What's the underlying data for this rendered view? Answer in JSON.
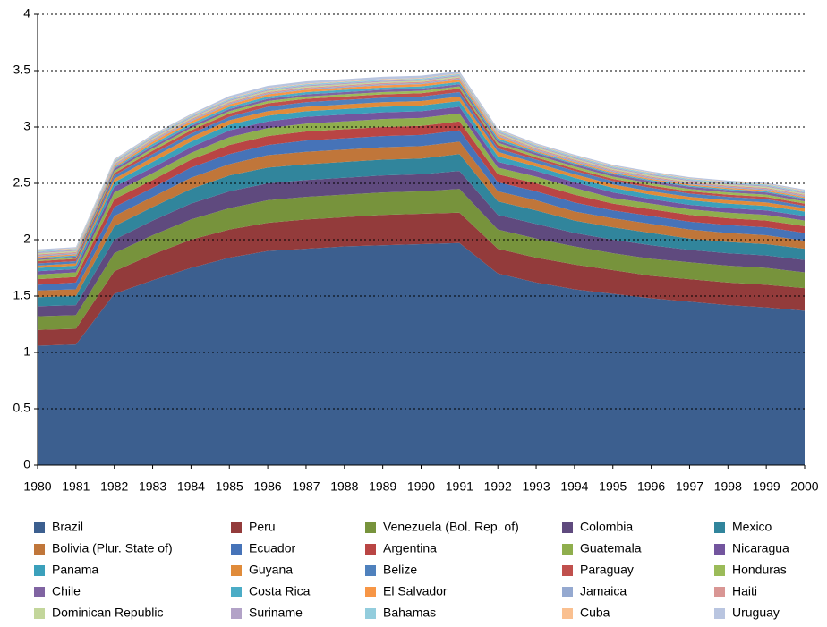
{
  "chart_data": {
    "type": "stacked_area",
    "categories": [
      "1980",
      "1981",
      "1982",
      "1983",
      "1984",
      "1985",
      "1986",
      "1987",
      "1988",
      "1989",
      "1990",
      "1991",
      "1992",
      "1993",
      "1994",
      "1995",
      "1996",
      "1997",
      "1998",
      "1999",
      "2000"
    ],
    "ylim": [
      0,
      4
    ],
    "yticks": [
      0,
      0.5,
      1,
      1.5,
      2,
      2.5,
      3,
      3.5,
      4
    ],
    "grid": true,
    "legend": "bottom",
    "series": [
      {
        "name": "Brazil",
        "color": "#3c5f8f",
        "values": [
          1.06,
          1.07,
          1.52,
          1.64,
          1.75,
          1.84,
          1.9,
          1.92,
          1.94,
          1.95,
          1.96,
          1.97,
          1.7,
          1.62,
          1.56,
          1.52,
          1.48,
          1.45,
          1.42,
          1.4,
          1.37
        ]
      },
      {
        "name": "Peru",
        "color": "#933b3b",
        "values": [
          0.14,
          0.14,
          0.2,
          0.23,
          0.25,
          0.25,
          0.25,
          0.26,
          0.26,
          0.27,
          0.27,
          0.27,
          0.22,
          0.22,
          0.22,
          0.21,
          0.2,
          0.2,
          0.2,
          0.2,
          0.2
        ]
      },
      {
        "name": "Venezuela (Bol. Rep. of)",
        "color": "#77933c",
        "values": [
          0.12,
          0.12,
          0.16,
          0.17,
          0.18,
          0.19,
          0.2,
          0.2,
          0.2,
          0.2,
          0.2,
          0.21,
          0.17,
          0.17,
          0.16,
          0.15,
          0.15,
          0.15,
          0.15,
          0.15,
          0.14
        ]
      },
      {
        "name": "Colombia",
        "color": "#5f4a7e",
        "values": [
          0.09,
          0.09,
          0.12,
          0.13,
          0.14,
          0.15,
          0.15,
          0.15,
          0.15,
          0.15,
          0.15,
          0.16,
          0.13,
          0.13,
          0.12,
          0.12,
          0.12,
          0.11,
          0.11,
          0.11,
          0.11
        ]
      },
      {
        "name": "Mexico",
        "color": "#31859c",
        "values": [
          0.08,
          0.08,
          0.12,
          0.12,
          0.13,
          0.14,
          0.14,
          0.14,
          0.14,
          0.14,
          0.14,
          0.15,
          0.12,
          0.12,
          0.11,
          0.11,
          0.11,
          0.1,
          0.1,
          0.1,
          0.1
        ]
      },
      {
        "name": "Bolivia (Plur. State of)",
        "color": "#c0763a",
        "values": [
          0.06,
          0.06,
          0.09,
          0.09,
          0.1,
          0.1,
          0.11,
          0.11,
          0.11,
          0.11,
          0.11,
          0.11,
          0.09,
          0.09,
          0.08,
          0.08,
          0.08,
          0.08,
          0.08,
          0.08,
          0.07
        ]
      },
      {
        "name": "Ecuador",
        "color": "#4673b8",
        "values": [
          0.05,
          0.06,
          0.08,
          0.08,
          0.09,
          0.09,
          0.09,
          0.1,
          0.1,
          0.1,
          0.1,
          0.1,
          0.08,
          0.08,
          0.08,
          0.07,
          0.07,
          0.07,
          0.07,
          0.07,
          0.07
        ]
      },
      {
        "name": "Argentina",
        "color": "#b94544",
        "values": [
          0.05,
          0.05,
          0.07,
          0.07,
          0.07,
          0.08,
          0.08,
          0.08,
          0.08,
          0.08,
          0.08,
          0.08,
          0.07,
          0.07,
          0.07,
          0.06,
          0.06,
          0.06,
          0.06,
          0.06,
          0.06
        ]
      },
      {
        "name": "Guatemala",
        "color": "#8fae4d",
        "values": [
          0.04,
          0.04,
          0.06,
          0.06,
          0.06,
          0.07,
          0.07,
          0.07,
          0.07,
          0.07,
          0.07,
          0.07,
          0.06,
          0.06,
          0.06,
          0.05,
          0.05,
          0.05,
          0.05,
          0.05,
          0.05
        ]
      },
      {
        "name": "Nicaragua",
        "color": "#73559e",
        "values": [
          0.03,
          0.03,
          0.05,
          0.05,
          0.05,
          0.06,
          0.06,
          0.06,
          0.06,
          0.06,
          0.06,
          0.06,
          0.05,
          0.05,
          0.05,
          0.05,
          0.04,
          0.04,
          0.04,
          0.04,
          0.04
        ]
      },
      {
        "name": "Panama",
        "color": "#3ba0bb",
        "values": [
          0.03,
          0.03,
          0.04,
          0.05,
          0.05,
          0.05,
          0.05,
          0.05,
          0.05,
          0.05,
          0.05,
          0.05,
          0.05,
          0.04,
          0.04,
          0.04,
          0.04,
          0.04,
          0.04,
          0.04,
          0.04
        ]
      },
      {
        "name": "Guyana",
        "color": "#e08b3a",
        "values": [
          0.02,
          0.02,
          0.03,
          0.04,
          0.04,
          0.04,
          0.04,
          0.04,
          0.04,
          0.04,
          0.04,
          0.04,
          0.04,
          0.03,
          0.03,
          0.03,
          0.03,
          0.03,
          0.03,
          0.03,
          0.03
        ]
      },
      {
        "name": "Belize",
        "color": "#4f81bd",
        "values": [
          0.02,
          0.02,
          0.03,
          0.03,
          0.03,
          0.03,
          0.04,
          0.04,
          0.04,
          0.04,
          0.04,
          0.04,
          0.03,
          0.03,
          0.03,
          0.03,
          0.03,
          0.03,
          0.03,
          0.03,
          0.02
        ]
      },
      {
        "name": "Paraguay",
        "color": "#c0504d",
        "values": [
          0.02,
          0.02,
          0.02,
          0.03,
          0.03,
          0.03,
          0.03,
          0.03,
          0.03,
          0.03,
          0.03,
          0.03,
          0.03,
          0.02,
          0.02,
          0.02,
          0.02,
          0.02,
          0.02,
          0.02,
          0.02
        ]
      },
      {
        "name": "Honduras",
        "color": "#9bbb59",
        "values": [
          0.01,
          0.01,
          0.02,
          0.02,
          0.02,
          0.02,
          0.02,
          0.02,
          0.02,
          0.02,
          0.02,
          0.02,
          0.02,
          0.02,
          0.02,
          0.02,
          0.02,
          0.02,
          0.02,
          0.02,
          0.02
        ]
      },
      {
        "name": "Chile",
        "color": "#8064a2",
        "values": [
          0.01,
          0.01,
          0.02,
          0.02,
          0.02,
          0.02,
          0.02,
          0.02,
          0.02,
          0.02,
          0.02,
          0.02,
          0.02,
          0.02,
          0.02,
          0.02,
          0.02,
          0.02,
          0.02,
          0.02,
          0.02
        ]
      },
      {
        "name": "Costa Rica",
        "color": "#4bacc6",
        "values": [
          0.01,
          0.01,
          0.01,
          0.02,
          0.02,
          0.02,
          0.02,
          0.02,
          0.02,
          0.02,
          0.02,
          0.02,
          0.02,
          0.01,
          0.01,
          0.01,
          0.01,
          0.01,
          0.01,
          0.01,
          0.01
        ]
      },
      {
        "name": "El Salvador",
        "color": "#f79646",
        "values": [
          0.01,
          0.01,
          0.01,
          0.02,
          0.02,
          0.02,
          0.02,
          0.02,
          0.02,
          0.02,
          0.02,
          0.02,
          0.02,
          0.01,
          0.01,
          0.01,
          0.01,
          0.01,
          0.01,
          0.01,
          0.01
        ]
      },
      {
        "name": "Jamaica",
        "color": "#95a9d0",
        "values": [
          0.01,
          0.01,
          0.01,
          0.01,
          0.01,
          0.01,
          0.01,
          0.01,
          0.01,
          0.01,
          0.01,
          0.01,
          0.01,
          0.01,
          0.01,
          0.01,
          0.01,
          0.01,
          0.01,
          0.01,
          0.01
        ]
      },
      {
        "name": "Haiti",
        "color": "#d99694",
        "values": [
          0.01,
          0.01,
          0.01,
          0.01,
          0.01,
          0.01,
          0.01,
          0.01,
          0.01,
          0.01,
          0.01,
          0.01,
          0.01,
          0.01,
          0.01,
          0.01,
          0.01,
          0.01,
          0.01,
          0.01,
          0.01
        ]
      },
      {
        "name": "Dominican Republic",
        "color": "#c3d69b",
        "values": [
          0.01,
          0.01,
          0.01,
          0.01,
          0.01,
          0.01,
          0.01,
          0.01,
          0.01,
          0.01,
          0.01,
          0.01,
          0.01,
          0.01,
          0.01,
          0.01,
          0.01,
          0.01,
          0.01,
          0.01,
          0.01
        ]
      },
      {
        "name": "Suriname",
        "color": "#b2a2c7",
        "values": [
          0.01,
          0.01,
          0.01,
          0.01,
          0.01,
          0.01,
          0.01,
          0.01,
          0.01,
          0.01,
          0.01,
          0.01,
          0.01,
          0.01,
          0.01,
          0.01,
          0.01,
          0.01,
          0.01,
          0.01,
          0.01
        ]
      },
      {
        "name": "Bahamas",
        "color": "#93cddd",
        "values": [
          0.01,
          0.01,
          0.01,
          0.01,
          0.01,
          0.01,
          0.01,
          0.01,
          0.01,
          0.01,
          0.01,
          0.01,
          0.01,
          0.01,
          0.01,
          0.01,
          0.01,
          0.01,
          0.01,
          0.01,
          0.01
        ]
      },
      {
        "name": "Cuba",
        "color": "#fac090",
        "values": [
          0.005,
          0.005,
          0.005,
          0.005,
          0.005,
          0.005,
          0.005,
          0.005,
          0.005,
          0.005,
          0.005,
          0.005,
          0.005,
          0.005,
          0.005,
          0.005,
          0.005,
          0.005,
          0.005,
          0.005,
          0.005
        ]
      },
      {
        "name": "Uruguay",
        "color": "#b9c5e0",
        "values": [
          0.01,
          0.01,
          0.01,
          0.01,
          0.01,
          0.02,
          0.02,
          0.02,
          0.02,
          0.02,
          0.02,
          0.02,
          0.01,
          0.01,
          0.01,
          0.01,
          0.01,
          0.01,
          0.01,
          0.01,
          0.01
        ]
      }
    ]
  }
}
